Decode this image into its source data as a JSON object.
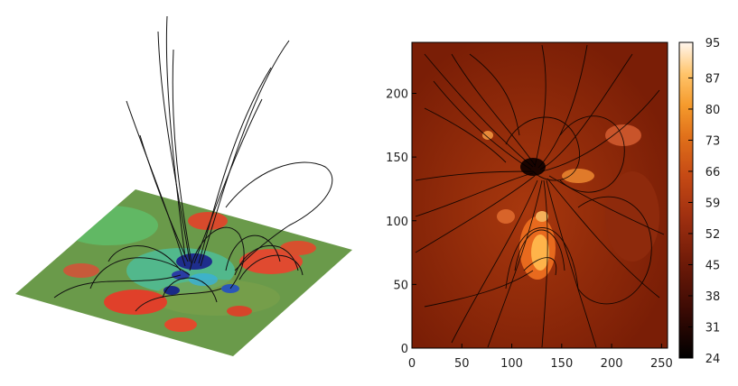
{
  "chart_data": [
    {
      "type": "other",
      "description_kind": "3d-perspective-magnetogram-with-field-lines",
      "colormap": [
        "#1a2f9c",
        "#2a8ed8",
        "#3fd0c0",
        "#5fb86a",
        "#7fa050",
        "#a38b3a",
        "#d05030",
        "#f08a70"
      ]
    },
    {
      "type": "heatmap",
      "x_ticks": [
        0,
        50,
        100,
        150,
        200,
        250
      ],
      "y_ticks": [
        0,
        50,
        100,
        150,
        200
      ],
      "xlim": [
        0,
        256
      ],
      "ylim": [
        0,
        240
      ],
      "colorbar": {
        "ticks": [
          24,
          31,
          38,
          45,
          52,
          59,
          66,
          73,
          80,
          87,
          95
        ],
        "range": [
          24,
          95
        ],
        "colors": [
          "#000000",
          "#3a0a04",
          "#6e1a08",
          "#a03010",
          "#c64a14",
          "#e0701a",
          "#f59a2c",
          "#ffc46a",
          "#fff0dd"
        ]
      },
      "field_lines_color": "#000000",
      "grid": false
    }
  ]
}
